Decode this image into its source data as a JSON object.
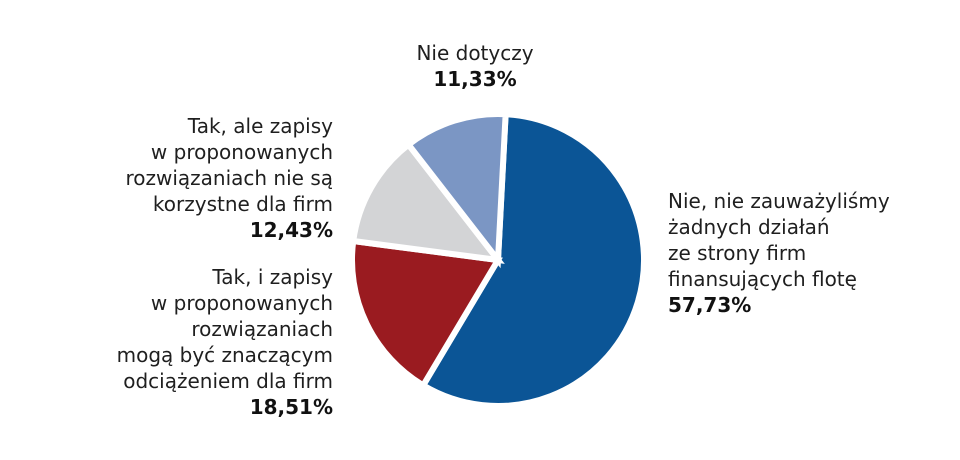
{
  "chart_data": {
    "type": "pie",
    "title": "",
    "slices": [
      {
        "label_lines": [
          "Nie, nie zauważyliśmy",
          "żadnych działań",
          "ze strony firm",
          "finansujących flotę"
        ],
        "value_label": "57,73%",
        "value": 57.73,
        "color": "#0b5596"
      },
      {
        "label_lines": [
          "Tak, i zapisy",
          "w proponowanych",
          "rozwiązaniach",
          "mogą być znaczącym",
          "odciążeniem dla firm"
        ],
        "value_label": "18,51%",
        "value": 18.51,
        "color": "#9a1b20"
      },
      {
        "label_lines": [
          "Tak, ale zapisy",
          "w proponowanych",
          "rozwiązaniach nie są",
          "korzystne dla firm"
        ],
        "value_label": "12,43%",
        "value": 12.43,
        "color": "#d3d4d6"
      },
      {
        "label_lines": [
          "Nie dotyczy"
        ],
        "value_label": "11,33%",
        "value": 11.33,
        "color": "#7b96c4"
      }
    ]
  }
}
